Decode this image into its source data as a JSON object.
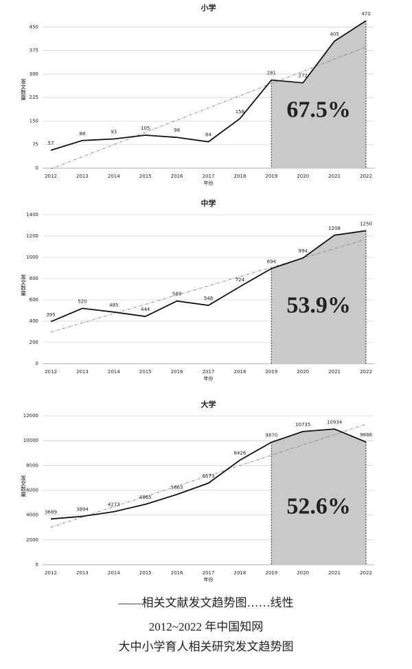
{
  "chart_data": [
    {
      "type": "line",
      "title": "小学",
      "y_label": "发文数量",
      "x_label": "年份",
      "categories": [
        "2012",
        "2013",
        "2014",
        "2015",
        "2016",
        "2017",
        "2018",
        "2019",
        "2020",
        "2021",
        "2022"
      ],
      "values": [
        57,
        88,
        93,
        105,
        98,
        84,
        158,
        281,
        272,
        405,
        470
      ],
      "ylim": [
        0,
        475
      ],
      "yticks": [
        0,
        75,
        150,
        225,
        300,
        375,
        450
      ],
      "grid": true,
      "color": "#111111",
      "trendline": "linear",
      "shade_from": "2019",
      "shade_color": "#c9c9c9",
      "annotation": "67.5%"
    },
    {
      "type": "line",
      "title": "中学",
      "y_label": "发文数量",
      "x_label": "年份",
      "categories": [
        "2012",
        "2013",
        "2014",
        "2015",
        "2016",
        "2017",
        "2018",
        "2019",
        "2020",
        "2021",
        "2022"
      ],
      "values": [
        395,
        520,
        485,
        444,
        589,
        548,
        724,
        894,
        994,
        1208,
        1250
      ],
      "ylim": [
        0,
        1400
      ],
      "yticks": [
        0,
        200,
        400,
        600,
        800,
        1000,
        1200,
        1400
      ],
      "grid": true,
      "color": "#111111",
      "trendline": "linear",
      "shade_from": "2019",
      "shade_color": "#c9c9c9",
      "annotation": "53.9%"
    },
    {
      "type": "line",
      "title": "大学",
      "y_label": "发文数量",
      "x_label": "年份",
      "categories": [
        "2012",
        "2013",
        "2014",
        "2015",
        "2016",
        "2017",
        "2018",
        "2019",
        "2020",
        "2021",
        "2022"
      ],
      "values": [
        3689,
        3894,
        4273,
        4865,
        5663,
        6573,
        8426,
        9870,
        10735,
        10934,
        9886
      ],
      "ylim": [
        0,
        12000
      ],
      "yticks": [
        0,
        2000,
        4000,
        6000,
        8000,
        10000,
        12000
      ],
      "grid": true,
      "color": "#111111",
      "trendline": "linear",
      "shade_from": "2019",
      "shade_color": "#c9c9c9",
      "annotation": "52.6%"
    }
  ],
  "legend_caption": "——相关文献发文趋势图……线性",
  "caption": [
    "2012~2022 年中国知网",
    "大中小学育人相关研究发文趋势图"
  ]
}
